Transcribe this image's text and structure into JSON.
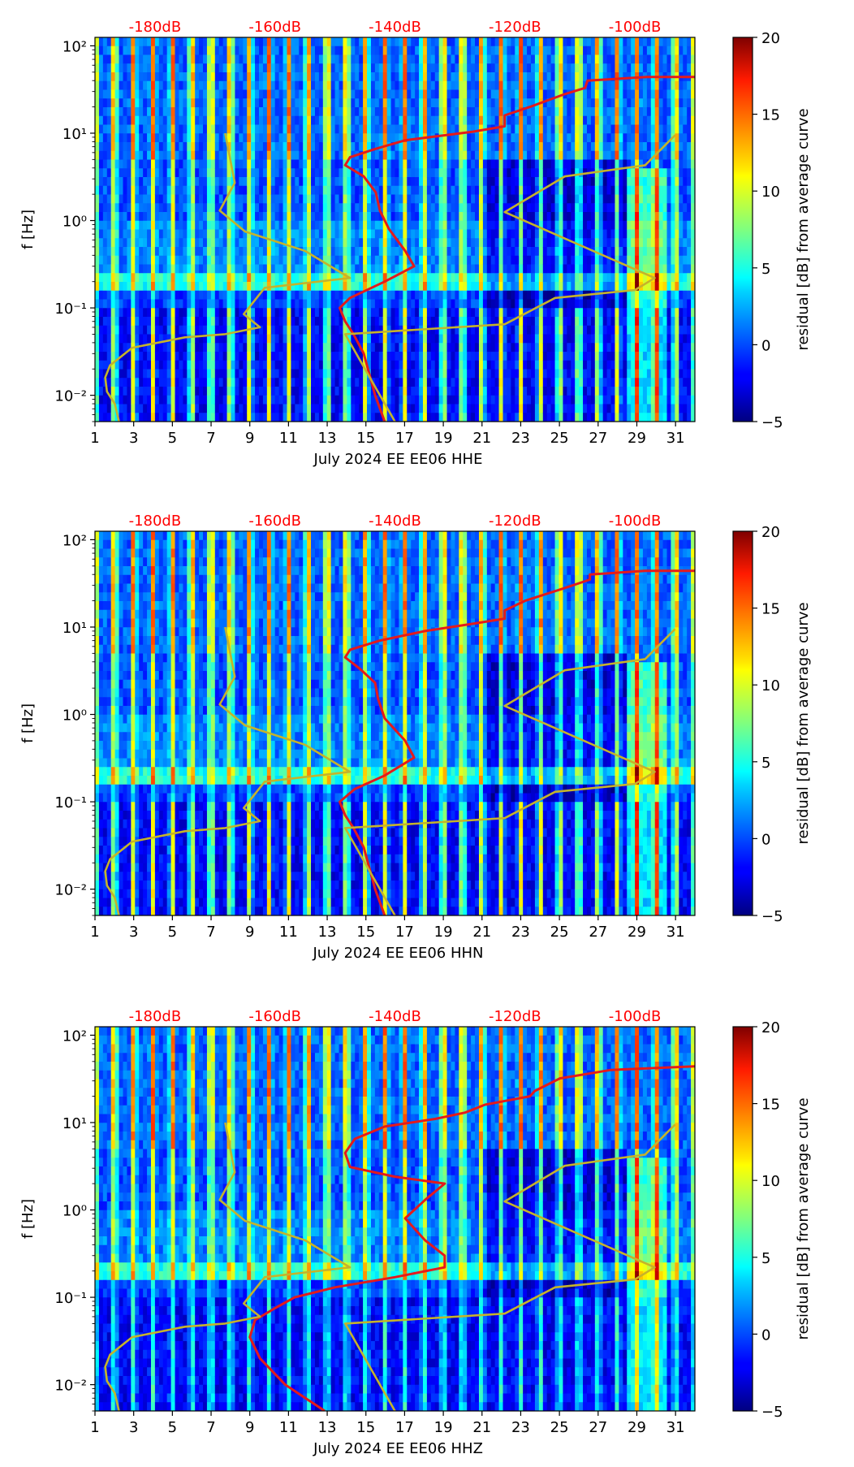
{
  "chart_data": [
    {
      "type": "heatmap",
      "xlabel": "July 2024 EE EE06  HHE",
      "ylabel": "f [Hz]",
      "x_ticks": [
        "1",
        "3",
        "5",
        "7",
        "9",
        "11",
        "13",
        "15",
        "17",
        "19",
        "21",
        "23",
        "25",
        "27",
        "29",
        "31"
      ],
      "y_ticks": [
        "10⁻²",
        "10⁻¹",
        "10⁰",
        "10¹",
        "10²"
      ],
      "xlim": [
        1,
        32
      ],
      "ylim_hz": [
        0.005,
        125
      ],
      "yscale": "log",
      "top_axis_labels": [
        "-180dB",
        "-160dB",
        "-140dB",
        "-120dB",
        "-100dB"
      ],
      "top_axis_db_range": [
        -190,
        -90
      ],
      "colorbar": {
        "label": "residual [dB] from average curve",
        "ticks": [
          "−5",
          "0",
          "5",
          "10",
          "15",
          "20"
        ],
        "range": [
          -5,
          20
        ],
        "colormap": "jet"
      },
      "series": [
        {
          "color": "#e41a1c",
          "points": [
            [
              -141.7,
              0.005
            ],
            [
              -143.3,
              0.01
            ],
            [
              -145.2,
              0.03
            ],
            [
              -146.9,
              0.05
            ],
            [
              -148.3,
              0.07
            ],
            [
              -149.2,
              0.1
            ],
            [
              -147.5,
              0.13
            ],
            [
              -141.7,
              0.2
            ],
            [
              -136.8,
              0.3
            ],
            [
              -138.3,
              0.45
            ],
            [
              -141.0,
              0.8
            ],
            [
              -142.5,
              1.3
            ],
            [
              -143.2,
              2.1
            ],
            [
              -145.2,
              3.2
            ],
            [
              -148.3,
              4.3
            ],
            [
              -147.5,
              5.3
            ],
            [
              -143.3,
              6.6
            ],
            [
              -138.3,
              8.3
            ],
            [
              -127.0,
              10.4
            ],
            [
              -121.7,
              12.0
            ],
            [
              -121.7,
              16.0
            ],
            [
              -117.5,
              20.0
            ],
            [
              -111.7,
              28.0
            ],
            [
              -108.3,
              33.0
            ],
            [
              -107.9,
              40.0
            ],
            [
              -98.0,
              44.0
            ],
            [
              -90.0,
              44.0
            ]
          ]
        },
        {
          "color": "#c5b32b",
          "points": [
            [
              -186.0,
              0.005
            ],
            [
              -186.7,
              0.008
            ],
            [
              -188.0,
              0.011
            ],
            [
              -188.3,
              0.016
            ],
            [
              -187.5,
              0.022
            ],
            [
              -183.8,
              0.035
            ],
            [
              -175.0,
              0.046
            ],
            [
              -168.3,
              0.05
            ],
            [
              -162.5,
              0.06
            ],
            [
              -165.2,
              0.085
            ],
            [
              -161.7,
              0.17
            ],
            [
              -147.5,
              0.22
            ],
            [
              -155.0,
              0.45
            ],
            [
              -165.0,
              0.75
            ],
            [
              -169.2,
              1.3
            ],
            [
              -166.7,
              2.7
            ],
            [
              -168.3,
              10.0
            ]
          ]
        },
        {
          "color": "#c5b32b",
          "points": [
            [
              -140.0,
              0.005
            ],
            [
              -148.3,
              0.05
            ],
            [
              -121.7,
              0.065
            ],
            [
              -113.3,
              0.13
            ],
            [
              -100.0,
              0.16
            ],
            [
              -96.7,
              0.22
            ],
            [
              -121.7,
              1.25
            ],
            [
              -111.7,
              3.2
            ],
            [
              -98.3,
              4.3
            ],
            [
              -93.3,
              9.5
            ]
          ]
        }
      ]
    },
    {
      "type": "heatmap",
      "xlabel": "July 2024 EE EE06  HHN",
      "ylabel": "f [Hz]",
      "x_ticks": [
        "1",
        "3",
        "5",
        "7",
        "9",
        "11",
        "13",
        "15",
        "17",
        "19",
        "21",
        "23",
        "25",
        "27",
        "29",
        "31"
      ],
      "y_ticks": [
        "10⁻²",
        "10⁻¹",
        "10⁰",
        "10¹",
        "10²"
      ],
      "xlim": [
        1,
        32
      ],
      "ylim_hz": [
        0.005,
        125
      ],
      "yscale": "log",
      "top_axis_labels": [
        "-180dB",
        "-160dB",
        "-140dB",
        "-120dB",
        "-100dB"
      ],
      "top_axis_db_range": [
        -190,
        -90
      ],
      "colorbar": {
        "label": "residual [dB] from average curve",
        "ticks": [
          "−5",
          "0",
          "5",
          "10",
          "15",
          "20"
        ],
        "range": [
          -5,
          20
        ],
        "colormap": "jet"
      },
      "series": [
        {
          "color": "#e41a1c",
          "points": [
            [
              -141.7,
              0.005
            ],
            [
              -143.3,
              0.01
            ],
            [
              -145.2,
              0.03
            ],
            [
              -146.9,
              0.05
            ],
            [
              -148.3,
              0.07
            ],
            [
              -149.2,
              0.1
            ],
            [
              -146.7,
              0.14
            ],
            [
              -141.7,
              0.2
            ],
            [
              -136.8,
              0.32
            ],
            [
              -138.3,
              0.5
            ],
            [
              -141.7,
              0.9
            ],
            [
              -142.8,
              1.5
            ],
            [
              -143.3,
              2.3
            ],
            [
              -146.0,
              3.4
            ],
            [
              -148.3,
              4.5
            ],
            [
              -147.5,
              5.5
            ],
            [
              -142.5,
              7.0
            ],
            [
              -135.0,
              9.0
            ],
            [
              -126.7,
              11.0
            ],
            [
              -121.7,
              12.5
            ],
            [
              -121.7,
              15.5
            ],
            [
              -118.3,
              20.0
            ],
            [
              -111.7,
              28.0
            ],
            [
              -107.5,
              35.0
            ],
            [
              -107.5,
              40.0
            ],
            [
              -98.3,
              44.0
            ],
            [
              -90.0,
              44.0
            ]
          ]
        },
        {
          "color": "#c5b32b",
          "points": [
            [
              -186.0,
              0.005
            ],
            [
              -186.7,
              0.008
            ],
            [
              -188.0,
              0.011
            ],
            [
              -188.3,
              0.016
            ],
            [
              -187.5,
              0.022
            ],
            [
              -183.8,
              0.035
            ],
            [
              -175.0,
              0.046
            ],
            [
              -168.3,
              0.05
            ],
            [
              -162.5,
              0.06
            ],
            [
              -165.2,
              0.085
            ],
            [
              -161.7,
              0.17
            ],
            [
              -147.5,
              0.22
            ],
            [
              -155.0,
              0.45
            ],
            [
              -165.0,
              0.75
            ],
            [
              -169.2,
              1.3
            ],
            [
              -166.7,
              2.7
            ],
            [
              -168.3,
              10.0
            ]
          ]
        },
        {
          "color": "#c5b32b",
          "points": [
            [
              -140.0,
              0.005
            ],
            [
              -148.3,
              0.05
            ],
            [
              -121.7,
              0.065
            ],
            [
              -113.3,
              0.13
            ],
            [
              -100.0,
              0.16
            ],
            [
              -96.7,
              0.22
            ],
            [
              -121.7,
              1.25
            ],
            [
              -111.7,
              3.2
            ],
            [
              -98.3,
              4.3
            ],
            [
              -93.3,
              9.5
            ]
          ]
        }
      ]
    },
    {
      "type": "heatmap",
      "xlabel": "July 2024 EE EE06  HHZ",
      "ylabel": "f [Hz]",
      "x_ticks": [
        "1",
        "3",
        "5",
        "7",
        "9",
        "11",
        "13",
        "15",
        "17",
        "19",
        "21",
        "23",
        "25",
        "27",
        "29",
        "31"
      ],
      "y_ticks": [
        "10⁻²",
        "10⁻¹",
        "10⁰",
        "10¹",
        "10²"
      ],
      "xlim": [
        1,
        32
      ],
      "ylim_hz": [
        0.005,
        125
      ],
      "yscale": "log",
      "top_axis_labels": [
        "-180dB",
        "-160dB",
        "-140dB",
        "-120dB",
        "-100dB"
      ],
      "top_axis_db_range": [
        -190,
        -90
      ],
      "colorbar": {
        "label": "residual [dB] from average curve",
        "ticks": [
          "−5",
          "0",
          "5",
          "10",
          "15",
          "20"
        ],
        "range": [
          -5,
          20
        ],
        "colormap": "jet"
      },
      "series": [
        {
          "color": "#e41a1c",
          "points": [
            [
              -151.7,
              0.005
            ],
            [
              -158.3,
              0.01
            ],
            [
              -162.5,
              0.02
            ],
            [
              -164.2,
              0.035
            ],
            [
              -163.3,
              0.055
            ],
            [
              -160.0,
              0.075
            ],
            [
              -156.7,
              0.1
            ],
            [
              -150.0,
              0.13
            ],
            [
              -140.0,
              0.17
            ],
            [
              -131.7,
              0.22
            ],
            [
              -131.7,
              0.3
            ],
            [
              -135.0,
              0.45
            ],
            [
              -138.3,
              0.8
            ],
            [
              -135.0,
              1.3
            ],
            [
              -131.7,
              2.0
            ],
            [
              -140.0,
              2.4
            ],
            [
              -147.5,
              3.1
            ],
            [
              -148.3,
              4.5
            ],
            [
              -146.7,
              6.5
            ],
            [
              -141.7,
              9.0
            ],
            [
              -133.3,
              11.0
            ],
            [
              -128.3,
              13.0
            ],
            [
              -125.0,
              16.0
            ],
            [
              -117.5,
              20.0
            ],
            [
              -116.7,
              23.0
            ],
            [
              -112.5,
              32.0
            ],
            [
              -104.0,
              40.0
            ],
            [
              -90.0,
              44.0
            ]
          ]
        },
        {
          "color": "#c5b32b",
          "points": [
            [
              -186.0,
              0.005
            ],
            [
              -186.7,
              0.008
            ],
            [
              -188.0,
              0.011
            ],
            [
              -188.3,
              0.016
            ],
            [
              -187.5,
              0.022
            ],
            [
              -183.8,
              0.035
            ],
            [
              -175.0,
              0.046
            ],
            [
              -168.3,
              0.05
            ],
            [
              -162.5,
              0.06
            ],
            [
              -165.2,
              0.085
            ],
            [
              -161.7,
              0.17
            ],
            [
              -147.5,
              0.22
            ],
            [
              -155.0,
              0.45
            ],
            [
              -165.0,
              0.75
            ],
            [
              -169.2,
              1.3
            ],
            [
              -166.7,
              2.7
            ],
            [
              -168.3,
              10.0
            ]
          ]
        },
        {
          "color": "#c5b32b",
          "points": [
            [
              -140.0,
              0.005
            ],
            [
              -148.3,
              0.05
            ],
            [
              -121.7,
              0.065
            ],
            [
              -113.3,
              0.13
            ],
            [
              -100.0,
              0.16
            ],
            [
              -96.7,
              0.22
            ],
            [
              -121.7,
              1.25
            ],
            [
              -111.7,
              3.2
            ],
            [
              -98.3,
              4.3
            ],
            [
              -93.3,
              9.5
            ]
          ]
        }
      ]
    }
  ]
}
